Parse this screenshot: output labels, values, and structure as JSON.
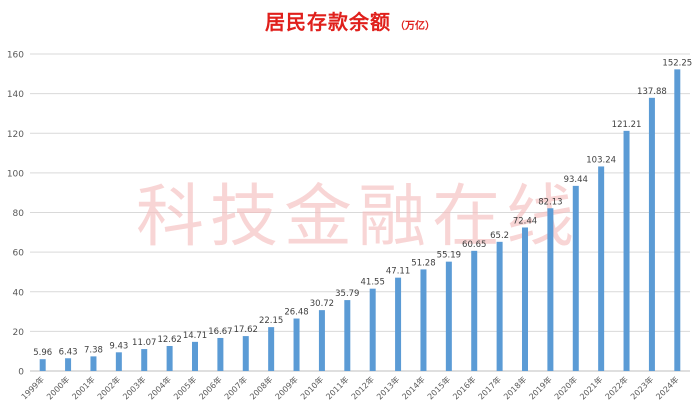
{
  "chart_data": {
    "type": "bar",
    "title": "居民存款余额",
    "unit": "（万亿）",
    "watermark": "科技金融在线",
    "categories": [
      "1999年",
      "2000年",
      "2001年",
      "2002年",
      "2003年",
      "2004年",
      "2005年",
      "2006年",
      "2007年",
      "2008年",
      "2009年",
      "2010年",
      "2011年",
      "2012年",
      "2013年",
      "2014年",
      "2015年",
      "2016年",
      "2017年",
      "2018年",
      "2019年",
      "2020年",
      "2021年",
      "2022年",
      "2023年",
      "2024年"
    ],
    "values": [
      5.96,
      6.43,
      7.38,
      9.43,
      11.07,
      12.62,
      14.71,
      16.67,
      17.62,
      22.15,
      26.48,
      30.72,
      35.79,
      41.55,
      47.11,
      51.28,
      55.19,
      60.65,
      65.2,
      72.44,
      82.13,
      93.44,
      103.24,
      121.21,
      137.88,
      152.25
    ],
    "ylim": [
      0,
      160
    ],
    "yticks": [
      0,
      20,
      40,
      60,
      80,
      100,
      120,
      140,
      160
    ],
    "grid": true,
    "bar_color": "#5b9bd5",
    "title_color": "#e0201c",
    "watermark_color": "#f3b9b9"
  }
}
